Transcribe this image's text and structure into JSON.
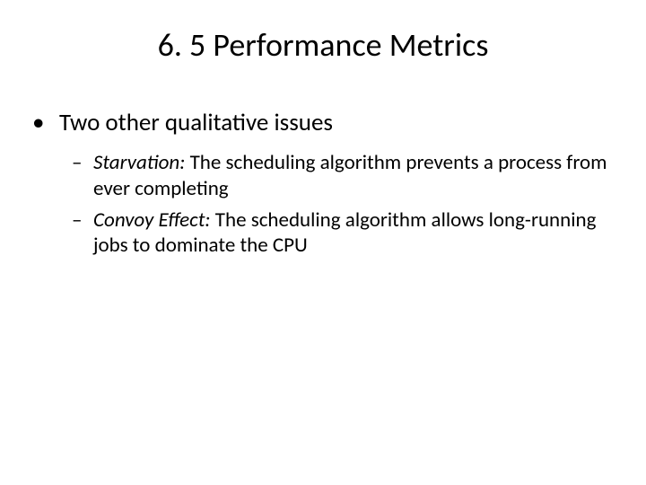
{
  "title": "6. 5 Performance Metrics",
  "main_bullet": "Two other qualitative issues",
  "bullet_marker_l1": "•",
  "bullet_marker_l2": "–",
  "sub_items": [
    {
      "term": "Starvation:",
      "desc": " The scheduling algorithm prevents a process from ever completing"
    },
    {
      "term": "Convoy Effect:",
      "desc": " The scheduling algorithm allows long-running jobs to dominate the CPU"
    }
  ]
}
